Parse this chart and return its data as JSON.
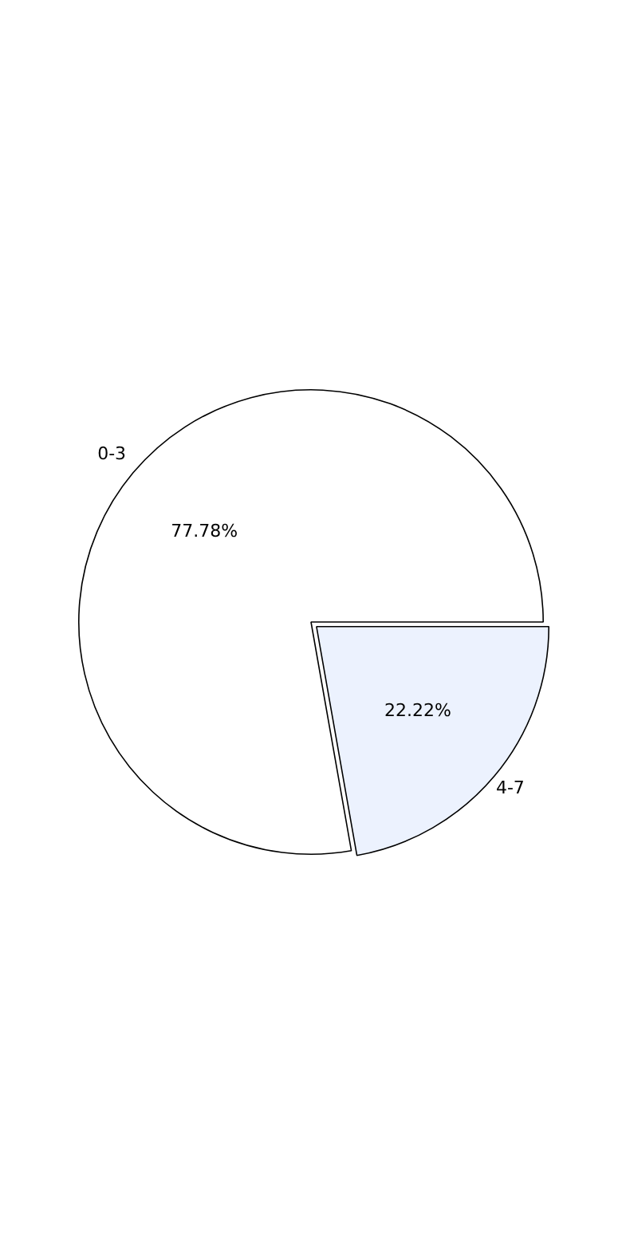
{
  "chart_data": {
    "type": "pie",
    "categories": [
      "0-3",
      "4-7"
    ],
    "values": [
      77.78,
      22.22
    ],
    "colors": [
      "#ffffff",
      "#ecf2fe"
    ],
    "value_labels": [
      "77.78%",
      "22.22%"
    ],
    "legend": false
  }
}
